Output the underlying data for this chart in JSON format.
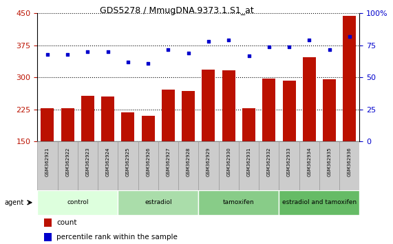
{
  "title": "GDS5278 / MmugDNA.9373.1.S1_at",
  "samples": [
    "GSM362921",
    "GSM362922",
    "GSM362923",
    "GSM362924",
    "GSM362925",
    "GSM362926",
    "GSM362927",
    "GSM362928",
    "GSM362929",
    "GSM362930",
    "GSM362931",
    "GSM362932",
    "GSM362933",
    "GSM362934",
    "GSM362935",
    "GSM362936"
  ],
  "counts": [
    228,
    228,
    257,
    255,
    218,
    210,
    272,
    268,
    318,
    317,
    228,
    298,
    293,
    348,
    295,
    445
  ],
  "percentiles": [
    68,
    68,
    70,
    70,
    62,
    61,
    72,
    69,
    78,
    79,
    67,
    74,
    74,
    79,
    72,
    82
  ],
  "groups": [
    {
      "label": "control",
      "start": 0,
      "end": 4,
      "color": "#ddffdd"
    },
    {
      "label": "estradiol",
      "start": 4,
      "end": 8,
      "color": "#aaddaa"
    },
    {
      "label": "tamoxifen",
      "start": 8,
      "end": 12,
      "color": "#88cc88"
    },
    {
      "label": "estradiol and tamoxifen",
      "start": 12,
      "end": 16,
      "color": "#66bb66"
    }
  ],
  "bar_color": "#bb1100",
  "dot_color": "#0000cc",
  "ylim_left": [
    150,
    450
  ],
  "ylim_right": [
    0,
    100
  ],
  "yticks_left": [
    150,
    225,
    300,
    375,
    450
  ],
  "yticks_right": [
    0,
    25,
    50,
    75,
    100
  ],
  "background_color": "#ffffff",
  "grid_color": "#000000",
  "agent_label": "agent",
  "legend_count": "count",
  "legend_percentile": "percentile rank within the sample"
}
